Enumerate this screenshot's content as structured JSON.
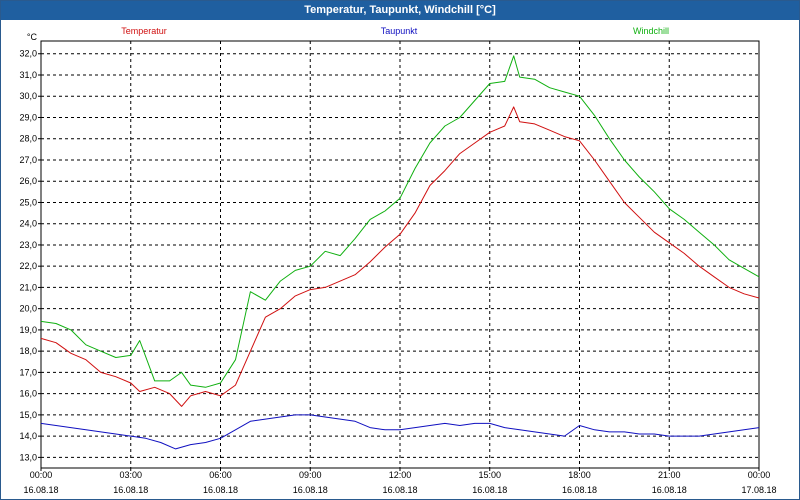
{
  "window": {
    "title": "Temperatur, Taupunkt, Windchill [°C]"
  },
  "chart_data": {
    "type": "line",
    "title": "Temperatur, Taupunkt, Windchill [°C]",
    "ylabel": "°C",
    "xlabel": "",
    "ylim": [
      12.5,
      32.6
    ],
    "xlim": [
      0,
      24
    ],
    "grid": true,
    "y_ticks": [
      "13,0",
      "14,0",
      "15,0",
      "16,0",
      "17,0",
      "18,0",
      "19,0",
      "20,0",
      "21,0",
      "22,0",
      "23,0",
      "24,0",
      "25,0",
      "26,0",
      "27,0",
      "28,0",
      "29,0",
      "30,0",
      "31,0",
      "32,0"
    ],
    "x_ticks": [
      {
        "time": "00:00",
        "date": "16.08.18",
        "x": 0
      },
      {
        "time": "03:00",
        "date": "16.08.18",
        "x": 3
      },
      {
        "time": "06:00",
        "date": "16.08.18",
        "x": 6
      },
      {
        "time": "09:00",
        "date": "16.08.18",
        "x": 9
      },
      {
        "time": "12:00",
        "date": "16.08.18",
        "x": 12
      },
      {
        "time": "15:00",
        "date": "16.08.18",
        "x": 15
      },
      {
        "time": "18:00",
        "date": "16.08.18",
        "x": 18
      },
      {
        "time": "21:00",
        "date": "16.08.18",
        "x": 21
      },
      {
        "time": "00:00",
        "date": "17.08.18",
        "x": 24
      }
    ],
    "series": [
      {
        "name": "Temperatur",
        "color": "#d01010",
        "x": [
          0,
          0.5,
          1,
          1.5,
          2,
          2.5,
          3,
          3.3,
          3.8,
          4.3,
          4.7,
          5,
          5.5,
          6,
          6.5,
          7,
          7.5,
          8,
          8.5,
          9,
          9.5,
          10,
          10.5,
          11,
          11.5,
          12,
          12.5,
          13,
          13.5,
          14,
          14.5,
          15,
          15.5,
          15.8,
          16,
          16.5,
          17,
          17.5,
          18,
          18.5,
          19,
          19.5,
          20,
          20.5,
          21,
          21.5,
          22,
          22.5,
          23,
          23.5,
          24
        ],
        "values": [
          18.6,
          18.4,
          17.9,
          17.6,
          17.0,
          16.8,
          16.5,
          16.1,
          16.3,
          16.0,
          15.4,
          15.9,
          16.1,
          15.9,
          16.4,
          18.0,
          19.6,
          20.0,
          20.6,
          20.9,
          21.0,
          21.3,
          21.6,
          22.2,
          22.9,
          23.5,
          24.5,
          25.8,
          26.5,
          27.3,
          27.8,
          28.3,
          28.6,
          29.5,
          28.8,
          28.7,
          28.4,
          28.1,
          27.9,
          27.0,
          26.0,
          25.0,
          24.3,
          23.6,
          23.1,
          22.6,
          22.0,
          21.5,
          21.0,
          20.7,
          20.5
        ]
      },
      {
        "name": "Taupunkt",
        "color": "#1010c0",
        "x": [
          0,
          0.5,
          1,
          1.5,
          2,
          2.5,
          3,
          3.5,
          4,
          4.5,
          5,
          5.5,
          6,
          6.5,
          7,
          7.5,
          8,
          8.5,
          9,
          9.5,
          10,
          10.5,
          11,
          11.5,
          12,
          12.5,
          13,
          13.5,
          14,
          14.5,
          15,
          15.5,
          16,
          16.5,
          17,
          17.5,
          18,
          18.5,
          19,
          19.5,
          20,
          20.5,
          21,
          21.5,
          22,
          22.5,
          23,
          23.5,
          24
        ],
        "values": [
          14.6,
          14.5,
          14.4,
          14.3,
          14.2,
          14.1,
          14.0,
          13.9,
          13.7,
          13.4,
          13.6,
          13.7,
          13.9,
          14.3,
          14.7,
          14.8,
          14.9,
          15.0,
          15.0,
          14.9,
          14.8,
          14.7,
          14.4,
          14.3,
          14.3,
          14.4,
          14.5,
          14.6,
          14.5,
          14.6,
          14.6,
          14.4,
          14.3,
          14.2,
          14.1,
          14.0,
          14.5,
          14.3,
          14.2,
          14.2,
          14.1,
          14.1,
          14.0,
          14.0,
          14.0,
          14.1,
          14.2,
          14.3,
          14.4
        ]
      },
      {
        "name": "Windchill",
        "color": "#10b010",
        "x": [
          0,
          0.5,
          1,
          1.5,
          2,
          2.5,
          3,
          3.3,
          3.8,
          4.3,
          4.7,
          5,
          5.5,
          6,
          6.5,
          7,
          7.5,
          8,
          8.5,
          9,
          9.5,
          10,
          10.5,
          11,
          11.5,
          12,
          12.5,
          13,
          13.5,
          14,
          14.5,
          15,
          15.5,
          15.8,
          16,
          16.5,
          17,
          17.5,
          18,
          18.5,
          19,
          19.5,
          20,
          20.5,
          21,
          21.5,
          22,
          22.5,
          23,
          23.5,
          24
        ],
        "values": [
          19.4,
          19.3,
          19.0,
          18.3,
          18.0,
          17.7,
          17.8,
          18.5,
          16.6,
          16.6,
          17.0,
          16.4,
          16.3,
          16.5,
          17.6,
          20.8,
          20.4,
          21.3,
          21.8,
          22.0,
          22.7,
          22.5,
          23.3,
          24.2,
          24.6,
          25.2,
          26.6,
          27.8,
          28.6,
          29.0,
          29.8,
          30.6,
          30.7,
          31.9,
          30.9,
          30.8,
          30.4,
          30.2,
          30.0,
          29.1,
          28.0,
          27.0,
          26.2,
          25.5,
          24.7,
          24.2,
          23.6,
          23.0,
          22.3,
          21.9,
          21.5
        ]
      }
    ]
  }
}
